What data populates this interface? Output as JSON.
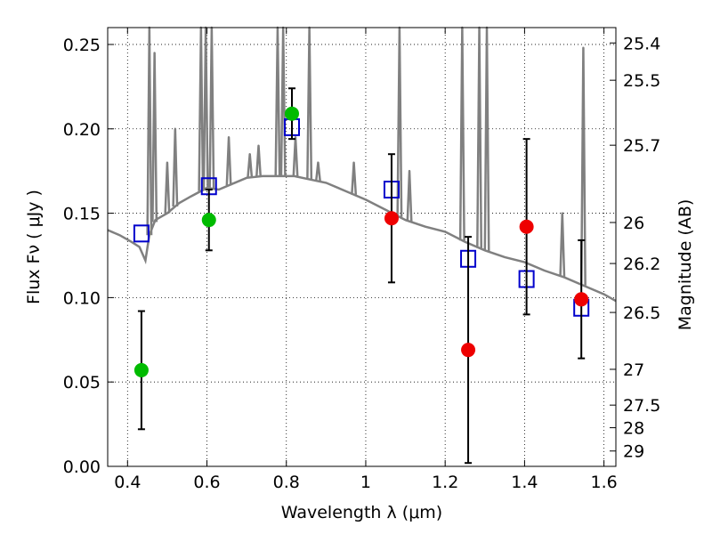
{
  "chart_data": {
    "type": "scatter",
    "xlabel": "Wavelength  λ (μm)",
    "ylabel": "Flux  Fν  ( μJy )",
    "y2label": "Magnitude (AB)",
    "xlim": [
      0.35,
      1.63
    ],
    "ylim": [
      0.0,
      0.26
    ],
    "grid": true,
    "x_ticks": [
      0.4,
      0.6,
      0.8,
      1.0,
      1.2,
      1.4,
      1.6
    ],
    "x_tick_labels": [
      "0.4",
      "0.6",
      "0.8",
      "1",
      "1.2",
      "1.4",
      "1.6"
    ],
    "y_ticks": [
      0.0,
      0.05,
      0.1,
      0.15,
      0.2,
      0.25
    ],
    "y_tick_labels": [
      "0.00",
      "0.05",
      "0.10",
      "0.15",
      "0.20",
      "0.25"
    ],
    "y2_ticks": [
      {
        "label": "25.4",
        "flux": 0.2509
      },
      {
        "label": "25.5",
        "flux": 0.2288
      },
      {
        "label": "25.7",
        "flux": 0.1903
      },
      {
        "label": "26",
        "flux": 0.1445
      },
      {
        "label": "26.2",
        "flux": 0.1202
      },
      {
        "label": "26.5",
        "flux": 0.0912
      },
      {
        "label": "27",
        "flux": 0.0575
      },
      {
        "label": "27.5",
        "flux": 0.0363
      },
      {
        "label": "28",
        "flux": 0.0229
      },
      {
        "label": "29",
        "flux": 0.0091
      }
    ],
    "series": [
      {
        "marker": "circle",
        "color": "#00bb00",
        "x": [
          0.435,
          0.605,
          0.814
        ],
        "y": [
          0.057,
          0.146,
          0.209
        ],
        "yerr": [
          0.035,
          0.018,
          0.015
        ]
      },
      {
        "marker": "circle",
        "color": "#ee0000",
        "x": [
          1.065,
          1.258,
          1.405,
          1.543
        ],
        "y": [
          0.147,
          0.069,
          0.142,
          0.099
        ],
        "yerr": [
          0.038,
          0.067,
          0.052,
          0.035
        ]
      },
      {
        "marker": "open-square",
        "color": "#0000cc",
        "x": [
          0.435,
          0.605,
          0.814,
          1.065,
          1.258,
          1.405,
          1.543
        ],
        "y": [
          0.138,
          0.166,
          0.201,
          0.164,
          0.123,
          0.111,
          0.094
        ]
      },
      {
        "type": "line",
        "color": "#808080",
        "x": [
          0.35,
          0.38,
          0.41,
          0.43,
          0.445,
          0.455,
          0.47,
          0.5,
          0.53,
          0.56,
          0.6,
          0.63,
          0.66,
          0.7,
          0.74,
          0.78,
          0.82,
          0.86,
          0.9,
          0.95,
          1.0,
          1.05,
          1.1,
          1.15,
          1.2,
          1.25,
          1.3,
          1.35,
          1.4,
          1.45,
          1.5,
          1.55,
          1.6,
          1.63
        ],
        "y": [
          0.14,
          0.137,
          0.133,
          0.13,
          0.122,
          0.137,
          0.146,
          0.15,
          0.156,
          0.16,
          0.165,
          0.164,
          0.167,
          0.171,
          0.172,
          0.172,
          0.172,
          0.17,
          0.168,
          0.163,
          0.158,
          0.152,
          0.146,
          0.142,
          0.139,
          0.133,
          0.128,
          0.124,
          0.121,
          0.116,
          0.112,
          0.107,
          0.102,
          0.098
        ]
      },
      {
        "type": "emission-lines",
        "color": "#808080",
        "x": [
          0.455,
          0.468,
          0.5,
          0.52,
          0.585,
          0.597,
          0.612,
          0.655,
          0.708,
          0.73,
          0.778,
          0.792,
          0.823,
          0.858,
          0.88,
          0.97,
          1.085,
          1.11,
          1.243,
          1.286,
          1.305,
          1.495,
          1.548
        ],
        "y": [
          0.26,
          0.245,
          0.18,
          0.2,
          0.26,
          0.26,
          0.26,
          0.195,
          0.185,
          0.19,
          0.26,
          0.26,
          0.195,
          0.26,
          0.18,
          0.18,
          0.26,
          0.175,
          0.26,
          0.26,
          0.26,
          0.15,
          0.248
        ]
      }
    ]
  }
}
